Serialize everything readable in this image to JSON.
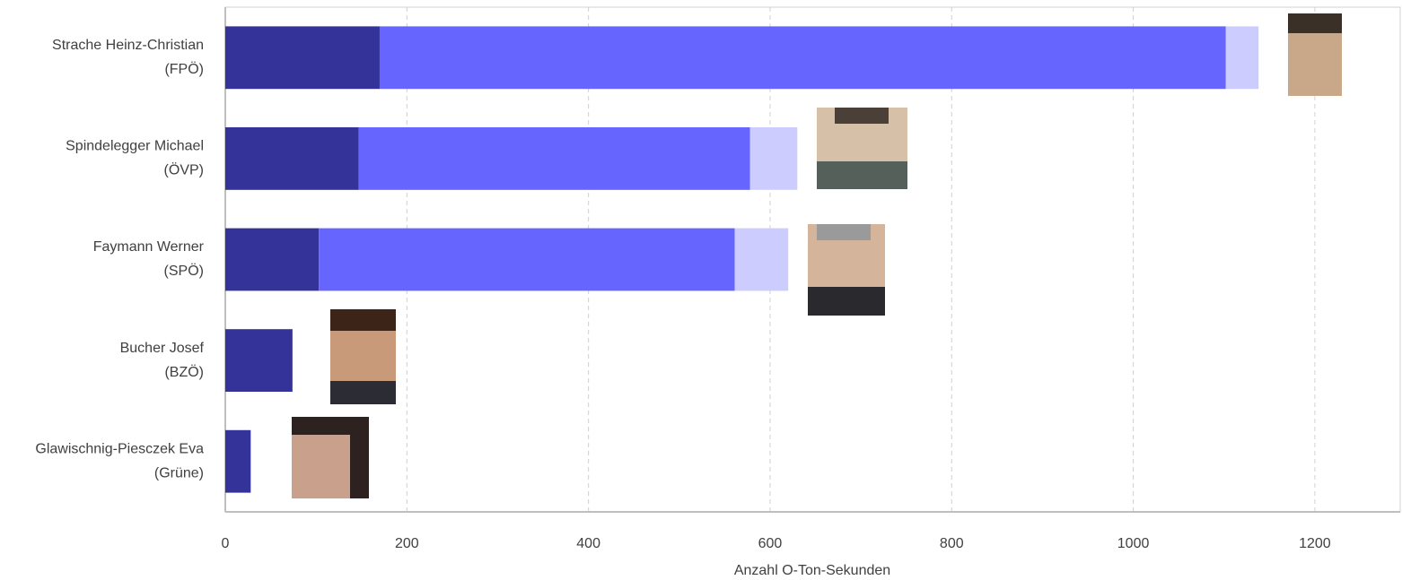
{
  "chart_data": {
    "type": "stacked-bar-horizontal",
    "categories": [
      [
        "Strache Heinz-Christian",
        "(FPÖ)"
      ],
      [
        "Spindelegger Michael",
        "(ÖVP)"
      ],
      [
        "Faymann Werner",
        "(SPÖ)"
      ],
      [
        "Bucher Josef",
        "(BZÖ)"
      ],
      [
        "Glawischnig-Piesczek Eva",
        "(Grüne)"
      ]
    ],
    "series": [
      {
        "color": "#333399",
        "values": [
          170,
          147,
          103,
          74,
          28
        ]
      },
      {
        "color": "#6666ff",
        "values": [
          932,
          431,
          458,
          null,
          null
        ]
      },
      {
        "color": "#ccccff",
        "values": [
          36,
          52,
          59,
          null,
          null
        ]
      }
    ],
    "xlim": [
      0,
      1294
    ],
    "xticks": [
      0,
      200,
      400,
      600,
      800,
      1000,
      1200
    ],
    "xlabel": "Anzahl O-Ton-Sekunden",
    "grid": true
  }
}
